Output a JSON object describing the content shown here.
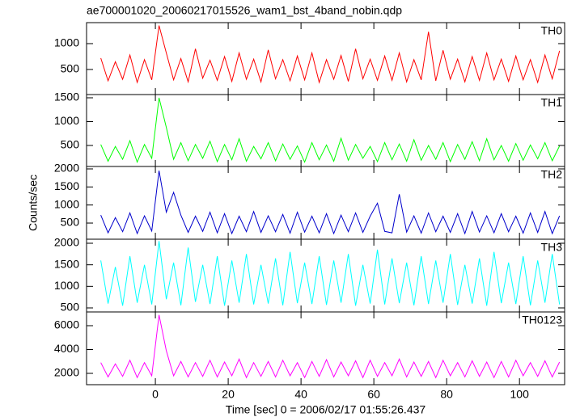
{
  "chart_data": [
    {
      "type": "line",
      "title": "ae700001020_20060217015526_wam1_bst_4band_nobin.qdp",
      "xlim": [
        -18.9,
        112.4
      ],
      "xticks": [
        0,
        20,
        40,
        60,
        80,
        100
      ],
      "ylim": [
        15,
        1406
      ],
      "yticks": [
        500,
        1000
      ],
      "x": [
        -15,
        -13,
        -11,
        -9,
        -7,
        -5,
        -3,
        -1,
        1,
        3,
        5,
        7,
        9,
        11,
        13,
        15,
        17,
        19,
        21,
        23,
        25,
        27,
        29,
        31,
        33,
        35,
        37,
        39,
        41,
        43,
        45,
        47,
        49,
        51,
        53,
        55,
        57,
        59,
        61,
        63,
        65,
        67,
        69,
        71,
        73,
        75,
        77,
        79,
        81,
        83,
        85,
        87,
        89,
        91,
        93,
        95,
        97,
        99,
        101,
        103,
        105,
        107,
        109,
        111
      ],
      "series": [
        {
          "name": "TH0",
          "color": "#ff0000",
          "values": [
            720,
            280,
            650,
            310,
            780,
            250,
            690,
            300,
            1350,
            820,
            300,
            710,
            260,
            900,
            330,
            680,
            290,
            750,
            270,
            820,
            310,
            700,
            260,
            880,
            320,
            690,
            280,
            760,
            300,
            820,
            250,
            690,
            310,
            770,
            270,
            900,
            320,
            700,
            290,
            760,
            290,
            820,
            260,
            690,
            300,
            1230,
            280,
            870,
            310,
            700,
            260,
            750,
            290,
            820,
            300,
            700,
            270,
            760,
            300,
            690,
            250,
            780,
            320,
            860
          ]
        }
      ]
    },
    {
      "type": "line",
      "xlim": [
        -18.9,
        112.4
      ],
      "xticks": [
        0,
        20,
        40,
        60,
        80,
        100
      ],
      "ylim": [
        59,
        1568
      ],
      "yticks": [
        500,
        1000,
        1500
      ],
      "x": [
        -15,
        -13,
        -11,
        -9,
        -7,
        -5,
        -3,
        -1,
        1,
        3,
        5,
        7,
        9,
        11,
        13,
        15,
        17,
        19,
        21,
        23,
        25,
        27,
        29,
        31,
        33,
        35,
        37,
        39,
        41,
        43,
        45,
        47,
        49,
        51,
        53,
        55,
        57,
        59,
        61,
        63,
        65,
        67,
        69,
        71,
        73,
        75,
        77,
        79,
        81,
        83,
        85,
        87,
        89,
        91,
        93,
        95,
        97,
        99,
        101,
        103,
        105,
        107,
        109,
        111
      ],
      "series": [
        {
          "name": "TH1",
          "color": "#00ff00",
          "values": [
            520,
            170,
            480,
            210,
            600,
            150,
            520,
            230,
            1500,
            880,
            210,
            560,
            180,
            520,
            230,
            590,
            160,
            520,
            200,
            640,
            170,
            480,
            220,
            560,
            180,
            530,
            210,
            490,
            150,
            560,
            200,
            510,
            170,
            650,
            190,
            520,
            230,
            480,
            160,
            560,
            200,
            530,
            170,
            620,
            190,
            500,
            210,
            560,
            160,
            520,
            210,
            580,
            180,
            640,
            200,
            500,
            170,
            540,
            190,
            510,
            220,
            560,
            180,
            490
          ]
        }
      ]
    },
    {
      "type": "line",
      "ylabel": "Counts/sec",
      "xlim": [
        -18.9,
        112.4
      ],
      "xticks": [
        0,
        20,
        40,
        60,
        80,
        100
      ],
      "ylim": [
        53,
        2067
      ],
      "yticks": [
        500,
        1000,
        1500,
        2000
      ],
      "x": [
        -15,
        -13,
        -11,
        -9,
        -7,
        -5,
        -3,
        -1,
        1,
        3,
        5,
        7,
        9,
        11,
        13,
        15,
        17,
        19,
        21,
        23,
        25,
        27,
        29,
        31,
        33,
        35,
        37,
        39,
        41,
        43,
        45,
        47,
        49,
        51,
        53,
        55,
        57,
        59,
        61,
        63,
        65,
        67,
        69,
        71,
        73,
        75,
        77,
        79,
        81,
        83,
        85,
        87,
        89,
        91,
        93,
        95,
        97,
        99,
        101,
        103,
        105,
        107,
        109,
        111
      ],
      "series": [
        {
          "name": "TH2",
          "color": "#0000cc",
          "values": [
            720,
            230,
            650,
            260,
            780,
            210,
            700,
            280,
            1950,
            800,
            1350,
            720,
            240,
            690,
            270,
            800,
            230,
            760,
            210,
            690,
            260,
            820,
            240,
            700,
            260,
            740,
            220,
            800,
            250,
            690,
            230,
            760,
            210,
            720,
            260,
            780,
            240,
            690,
            1050,
            270,
            230,
            1300,
            250,
            700,
            220,
            780,
            260,
            690,
            240,
            760,
            210,
            820,
            250,
            700,
            230,
            760,
            260,
            690,
            220,
            780,
            240,
            820,
            210,
            700
          ]
        }
      ]
    },
    {
      "type": "line",
      "xlim": [
        -18.9,
        112.4
      ],
      "xticks": [
        0,
        20,
        40,
        60,
        80,
        100
      ],
      "ylim": [
        406,
        2094
      ],
      "yticks": [
        500,
        1000,
        1500,
        2000
      ],
      "x": [
        -15,
        -13,
        -11,
        -9,
        -7,
        -5,
        -3,
        -1,
        1,
        3,
        5,
        7,
        9,
        11,
        13,
        15,
        17,
        19,
        21,
        23,
        25,
        27,
        29,
        31,
        33,
        35,
        37,
        39,
        41,
        43,
        45,
        47,
        49,
        51,
        53,
        55,
        57,
        59,
        61,
        63,
        65,
        67,
        69,
        71,
        73,
        75,
        77,
        79,
        81,
        83,
        85,
        87,
        89,
        91,
        93,
        95,
        97,
        99,
        101,
        103,
        105,
        107,
        109,
        111
      ],
      "series": [
        {
          "name": "TH3",
          "color": "#00ffff",
          "values": [
            1600,
            600,
            1450,
            550,
            1700,
            620,
            1500,
            580,
            2050,
            700,
            1550,
            560,
            1900,
            640,
            1500,
            590,
            1700,
            550,
            1600,
            620,
            1750,
            580,
            1500,
            600,
            1650,
            560,
            1800,
            610,
            1550,
            590,
            1700,
            570,
            1600,
            620,
            1750,
            550,
            1500,
            600,
            1850,
            580,
            1650,
            610,
            1550,
            560,
            1700,
            590,
            1600,
            620,
            1750,
            570,
            1500,
            600,
            1650,
            550,
            1800,
            610,
            1550,
            590,
            1700,
            560,
            1600,
            620,
            1750,
            580
          ]
        }
      ]
    },
    {
      "type": "line",
      "xlabel": "Time [sec] 0 = 2006/02/17 01:55:26.437",
      "xlim": [
        -18.9,
        112.4
      ],
      "xticks": [
        0,
        20,
        40,
        60,
        80,
        100
      ],
      "ylim": [
        1051,
        7153
      ],
      "yticks": [
        2000,
        4000,
        6000
      ],
      "x": [
        -15,
        -13,
        -11,
        -9,
        -7,
        -5,
        -3,
        -1,
        1,
        3,
        5,
        7,
        9,
        11,
        13,
        15,
        17,
        19,
        21,
        23,
        25,
        27,
        29,
        31,
        33,
        35,
        37,
        39,
        41,
        43,
        45,
        47,
        49,
        51,
        53,
        55,
        57,
        59,
        61,
        63,
        65,
        67,
        69,
        71,
        73,
        75,
        77,
        79,
        81,
        83,
        85,
        87,
        89,
        91,
        93,
        95,
        97,
        99,
        101,
        103,
        105,
        107,
        109,
        111
      ],
      "series": [
        {
          "name": "TH0123",
          "color": "#ff00ff",
          "values": [
            2900,
            1700,
            2800,
            1750,
            3100,
            1650,
            2900,
            1800,
            6900,
            3900,
            1800,
            3000,
            1700,
            2900,
            1750,
            3100,
            1700,
            2950,
            1800,
            3200,
            1650,
            2900,
            1750,
            3000,
            1700,
            3100,
            1800,
            2900,
            1650,
            3000,
            1750,
            3150,
            1700,
            2950,
            1800,
            3050,
            1650,
            3100,
            1750,
            2900,
            1800,
            3200,
            1700,
            2950,
            1750,
            3000,
            1650,
            3100,
            1800,
            2900,
            1700,
            3050,
            1750,
            2950,
            1650,
            3000,
            1700,
            3100,
            1800,
            2900,
            1750,
            3050,
            1700,
            2950
          ]
        }
      ]
    }
  ]
}
